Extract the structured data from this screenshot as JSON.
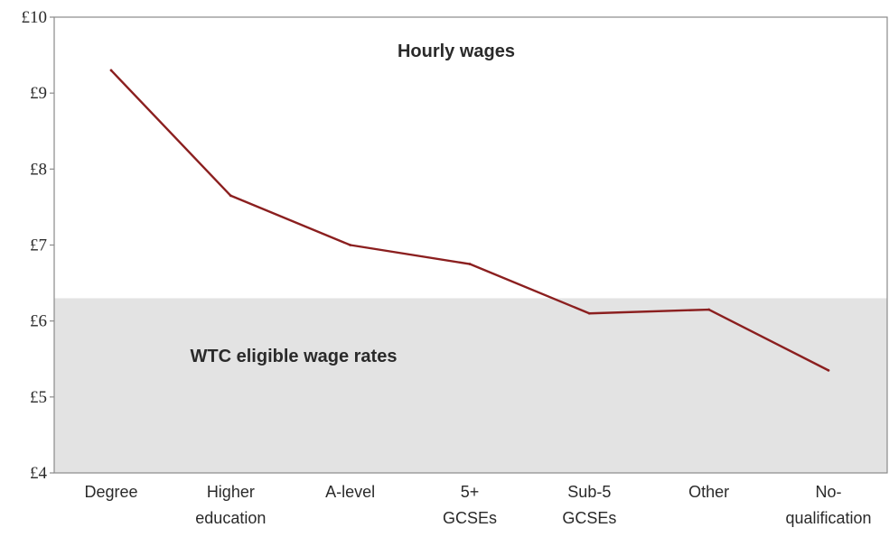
{
  "chart_data": {
    "type": "line",
    "title": "",
    "xlabel": "",
    "ylabel": "",
    "categories": [
      [
        "Degree"
      ],
      [
        "Higher",
        "education"
      ],
      [
        "A-level"
      ],
      [
        "5+",
        "GCSEs"
      ],
      [
        "Sub-5",
        "GCSEs"
      ],
      [
        "Other"
      ],
      [
        "No-",
        "qualification"
      ]
    ],
    "series": [
      {
        "values": [
          9.3,
          7.65,
          7.0,
          6.75,
          6.1,
          6.15,
          5.35
        ]
      }
    ],
    "ylim": [
      4,
      10
    ],
    "y_ticks": [
      {
        "value": 10,
        "label": "£10"
      },
      {
        "value": 9,
        "label": "£9"
      },
      {
        "value": 8,
        "label": "£8"
      },
      {
        "value": 7,
        "label": "£7"
      },
      {
        "value": 6,
        "label": "£6"
      },
      {
        "value": 5,
        "label": "£5"
      },
      {
        "value": 4,
        "label": "£4"
      }
    ],
    "shaded_region": {
      "from": 4,
      "to": 6.3,
      "label": "WTC eligible wage rates",
      "color": "#e3e3e3"
    },
    "annotations": [
      {
        "text": "Hourly wages"
      }
    ],
    "line_color": "#8b1f1f",
    "grid": false,
    "legend": "none"
  }
}
